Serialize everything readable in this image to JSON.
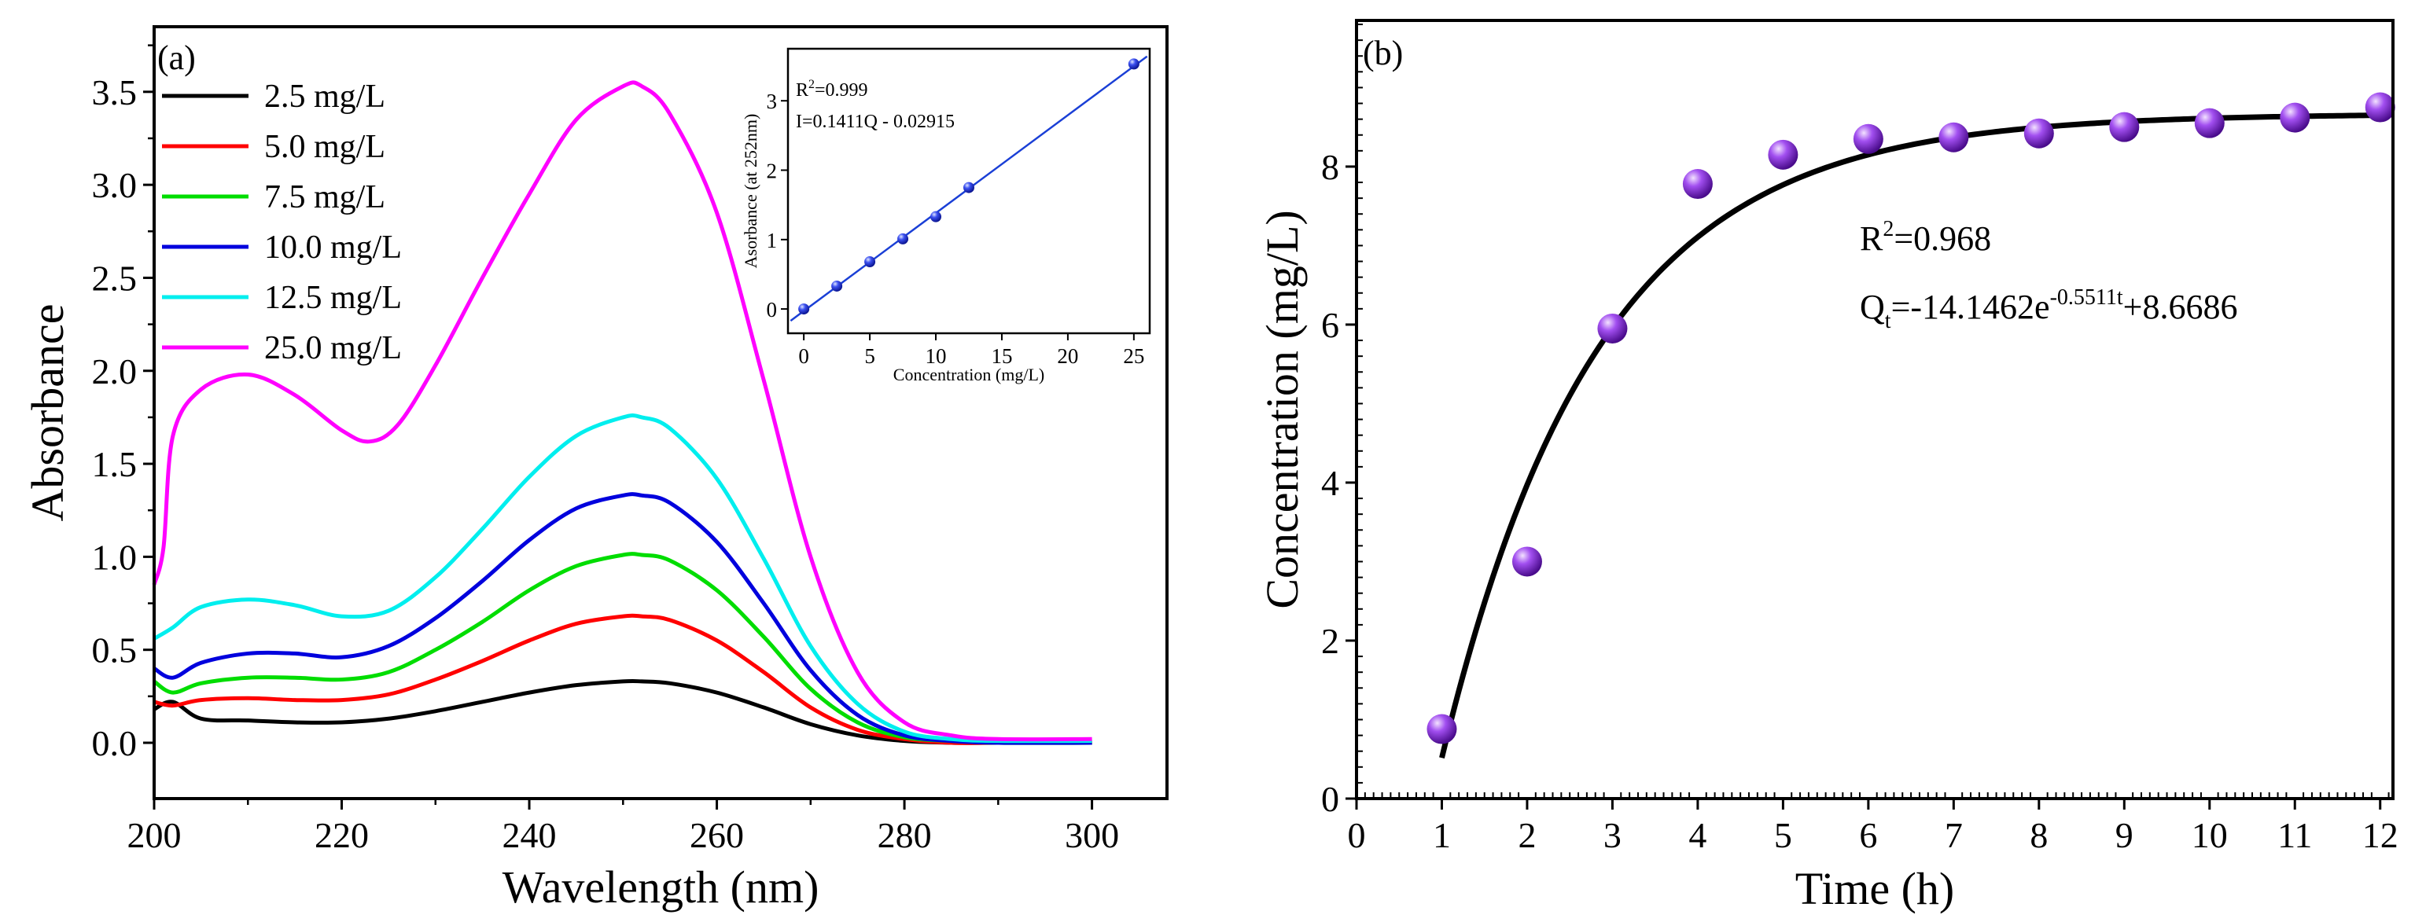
{
  "chart_data": [
    {
      "id": "a",
      "type": "line",
      "panel_label": "(a)",
      "xlabel": "Wavelength (nm)",
      "ylabel": "Absorbance",
      "xlim": [
        200,
        308
      ],
      "ylim": [
        -0.3,
        3.85
      ],
      "xticks": [
        200,
        220,
        240,
        260,
        280,
        300
      ],
      "yticks": [
        0.0,
        0.5,
        1.0,
        1.5,
        2.0,
        2.5,
        3.0,
        3.5
      ],
      "xtick_labels": [
        "200",
        "220",
        "240",
        "260",
        "280",
        "300"
      ],
      "ytick_labels": [
        "0.0",
        "0.5",
        "1.0",
        "1.5",
        "2.0",
        "2.5",
        "3.0",
        "3.5"
      ],
      "legend_position": "top-left",
      "series": [
        {
          "name": "2.5 mg/L",
          "color": "#000000",
          "x": [
            200,
            202,
            205,
            210,
            215,
            220,
            225,
            230,
            235,
            240,
            245,
            250,
            252,
            255,
            260,
            265,
            270,
            275,
            280,
            285,
            290,
            300
          ],
          "y": [
            0.18,
            0.22,
            0.13,
            0.12,
            0.11,
            0.11,
            0.13,
            0.17,
            0.22,
            0.27,
            0.31,
            0.33,
            0.33,
            0.32,
            0.27,
            0.19,
            0.1,
            0.04,
            0.01,
            0.0,
            0.0,
            0.0
          ]
        },
        {
          "name": "5.0 mg/L",
          "color": "#ff0000",
          "x": [
            200,
            202,
            205,
            210,
            215,
            220,
            225,
            230,
            235,
            240,
            245,
            250,
            252,
            255,
            260,
            265,
            270,
            275,
            280,
            285,
            290,
            300
          ],
          "y": [
            0.22,
            0.2,
            0.23,
            0.24,
            0.23,
            0.23,
            0.26,
            0.34,
            0.44,
            0.55,
            0.64,
            0.68,
            0.68,
            0.66,
            0.55,
            0.38,
            0.19,
            0.07,
            0.02,
            0.0,
            0.0,
            0.0
          ]
        },
        {
          "name": "7.5 mg/L",
          "color": "#00dd00",
          "x": [
            200,
            202,
            205,
            210,
            215,
            220,
            225,
            230,
            235,
            240,
            245,
            250,
            252,
            255,
            260,
            265,
            270,
            275,
            280,
            285,
            290,
            300
          ],
          "y": [
            0.33,
            0.27,
            0.32,
            0.35,
            0.35,
            0.34,
            0.38,
            0.5,
            0.65,
            0.82,
            0.95,
            1.01,
            1.01,
            0.98,
            0.82,
            0.57,
            0.29,
            0.11,
            0.03,
            0.01,
            0.0,
            0.0
          ]
        },
        {
          "name": "10.0 mg/L",
          "color": "#0000dd",
          "x": [
            200,
            202,
            205,
            210,
            215,
            220,
            225,
            230,
            235,
            240,
            245,
            250,
            252,
            255,
            260,
            265,
            270,
            275,
            280,
            285,
            290,
            300
          ],
          "y": [
            0.4,
            0.35,
            0.43,
            0.48,
            0.48,
            0.46,
            0.52,
            0.67,
            0.87,
            1.09,
            1.26,
            1.33,
            1.33,
            1.29,
            1.08,
            0.75,
            0.39,
            0.15,
            0.04,
            0.01,
            0.0,
            0.0
          ]
        },
        {
          "name": "12.5 mg/L",
          "color": "#00eeee",
          "x": [
            200,
            202,
            205,
            210,
            215,
            220,
            225,
            230,
            235,
            240,
            245,
            250,
            252,
            255,
            260,
            265,
            270,
            275,
            280,
            285,
            290,
            300
          ],
          "y": [
            0.56,
            0.62,
            0.73,
            0.77,
            0.74,
            0.68,
            0.71,
            0.89,
            1.15,
            1.43,
            1.65,
            1.75,
            1.75,
            1.69,
            1.42,
            0.99,
            0.52,
            0.21,
            0.06,
            0.02,
            0.01,
            0.01
          ]
        },
        {
          "name": "25.0 mg/L",
          "color": "#ff00ff",
          "x": [
            200,
            201,
            202,
            205,
            210,
            215,
            220,
            223,
            226,
            230,
            235,
            240,
            245,
            250,
            252,
            255,
            260,
            265,
            270,
            275,
            280,
            285,
            290,
            300
          ],
          "y": [
            0.85,
            1.05,
            1.65,
            1.9,
            1.98,
            1.87,
            1.68,
            1.62,
            1.71,
            2.03,
            2.5,
            2.95,
            3.35,
            3.53,
            3.53,
            3.38,
            2.85,
            1.95,
            1.0,
            0.38,
            0.11,
            0.04,
            0.02,
            0.02
          ]
        }
      ],
      "inset": {
        "type": "scatter",
        "xlabel": "Concentration (mg/L)",
        "ylabel": "Asorbance (at 252nm)",
        "xlim": [
          -1.2,
          26.2
        ],
        "ylim": [
          -0.35,
          3.75
        ],
        "xticks": [
          0,
          5,
          10,
          15,
          20,
          25
        ],
        "yticks": [
          0,
          1,
          2,
          3
        ],
        "xtick_labels": [
          "0",
          "5",
          "10",
          "15",
          "20",
          "25"
        ],
        "ytick_labels": [
          "0",
          "1",
          "2",
          "3"
        ],
        "x": [
          0,
          2.5,
          5,
          7.5,
          10,
          12.5,
          25
        ],
        "y": [
          0.0,
          0.33,
          0.68,
          1.01,
          1.33,
          1.75,
          3.53
        ],
        "fit": {
          "slope": 0.1411,
          "intercept": -0.02915
        },
        "annotations": {
          "r2_label": "R",
          "r2_sup": "2",
          "r2_value": "=0.999",
          "equation": "I=0.1411Q - 0.02915"
        },
        "marker_color": "#2233ee",
        "line_color": "#1a3fd6"
      }
    },
    {
      "id": "b",
      "type": "scatter",
      "panel_label": "(b)",
      "xlabel": "Time (h)",
      "ylabel": "Concentration (mg/L)",
      "xlim": [
        0,
        12.15
      ],
      "ylim": [
        0,
        9.85
      ],
      "xticks": [
        0,
        1,
        2,
        3,
        4,
        5,
        6,
        7,
        8,
        9,
        10,
        11,
        12
      ],
      "yticks": [
        0,
        2,
        4,
        6,
        8
      ],
      "xtick_labels": [
        "0",
        "1",
        "2",
        "3",
        "4",
        "5",
        "6",
        "7",
        "8",
        "9",
        "10",
        "11",
        "12"
      ],
      "ytick_labels": [
        "0",
        "2",
        "4",
        "6",
        "8"
      ],
      "x": [
        1,
        2,
        3,
        4,
        5,
        6,
        7,
        8,
        9,
        10,
        11,
        12
      ],
      "y": [
        0.88,
        3.0,
        5.95,
        7.78,
        8.15,
        8.35,
        8.37,
        8.42,
        8.5,
        8.55,
        8.62,
        8.75
      ],
      "marker_color": "#9b3fe6",
      "fit": {
        "a": -14.1462,
        "k": 0.5511,
        "c": 8.6686,
        "x_start": 1,
        "x_end": 12
      },
      "annotations": {
        "r2_label": "R",
        "r2_sup": "2",
        "r2_value": "=0.968",
        "eq_q": "Q",
        "eq_sub": "t",
        "eq_mid": "=-14.1462e",
        "eq_sup": "-0.5511t",
        "eq_end": "+8.6686"
      }
    }
  ]
}
